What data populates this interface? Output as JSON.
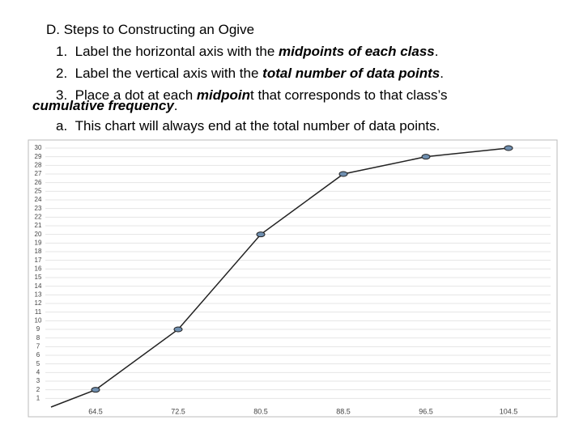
{
  "text": {
    "heading": "D.  Steps to Constructing an Ogive",
    "steps": [
      {
        "marker": "1.",
        "parts": [
          "Label the horizontal axis with the ",
          "midpoints of each class",
          "."
        ]
      },
      {
        "marker": "2.",
        "parts": [
          "Label the vertical axis with the ",
          "total number of data points",
          "."
        ]
      },
      {
        "marker": "3.",
        "parts": [
          "Place a dot at each ",
          "midpoin",
          "t that corresponds to that class’s"
        ],
        "continuation": [
          "cumulative frequency",
          "."
        ]
      }
    ],
    "note": {
      "marker": "a.",
      "text": "This chart will always end at the total number of data points."
    }
  },
  "chart_data": {
    "type": "line",
    "categories": [
      null,
      "64.5",
      "72.5",
      "80.5",
      "88.5",
      "96.5",
      "104.5"
    ],
    "values": [
      0,
      2,
      9,
      20,
      27,
      29,
      30
    ],
    "color": "#222222",
    "marker_color": "#6f8fb0",
    "ylim": [
      0,
      30
    ],
    "yticks": [
      1,
      2,
      3,
      4,
      5,
      6,
      7,
      8,
      9,
      10,
      11,
      12,
      13,
      14,
      15,
      16,
      17,
      18,
      19,
      20,
      21,
      22,
      23,
      24,
      25,
      26,
      27,
      28,
      29,
      30
    ],
    "grid": true
  }
}
